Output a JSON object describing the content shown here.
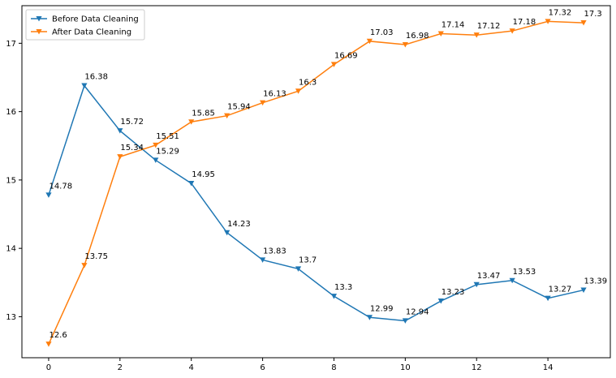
{
  "chart_data": {
    "type": "line",
    "title": "",
    "xlabel": "",
    "ylabel": "",
    "x": [
      0,
      1,
      2,
      3,
      4,
      5,
      6,
      7,
      8,
      9,
      10,
      11,
      12,
      13,
      14,
      15
    ],
    "xlim": [
      -0.75,
      15.75
    ],
    "ylim": [
      12.4,
      17.55
    ],
    "xticks": [
      0,
      2,
      4,
      6,
      8,
      10,
      12,
      14
    ],
    "yticks": [
      13,
      14,
      15,
      16,
      17
    ],
    "grid": false,
    "legend_position": "top-left",
    "series": [
      {
        "name": "Before Data Cleaning",
        "color": "#1f77b4",
        "marker": "triangle-down",
        "values": [
          14.78,
          16.38,
          15.72,
          15.29,
          14.95,
          14.23,
          13.83,
          13.7,
          13.3,
          12.99,
          12.94,
          13.23,
          13.47,
          13.53,
          13.27,
          13.39
        ]
      },
      {
        "name": "After Data Cleaning",
        "color": "#ff7f0e",
        "marker": "triangle-down",
        "values": [
          12.6,
          13.75,
          15.34,
          15.51,
          15.85,
          15.94,
          16.13,
          16.3,
          16.69,
          17.03,
          16.98,
          17.14,
          17.12,
          17.18,
          17.32,
          17.3
        ]
      }
    ]
  }
}
